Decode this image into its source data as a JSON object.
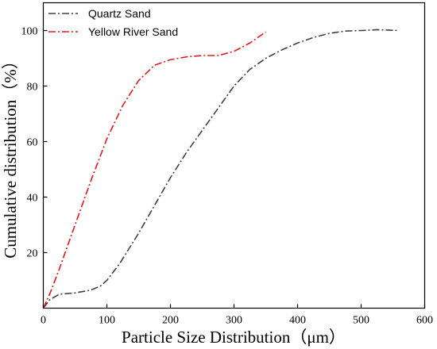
{
  "chart_data": {
    "type": "line",
    "xlabel": "Particle Size Distribution（μm）",
    "ylabel": "Cumulative distribution（%）",
    "xlim": [
      0,
      600
    ],
    "ylim": [
      0,
      110
    ],
    "xticks": [
      0,
      100,
      200,
      300,
      400,
      500,
      600
    ],
    "yticks": [
      20,
      40,
      60,
      80,
      100
    ],
    "grid": false,
    "legend_position": "top-left",
    "series": [
      {
        "name": "Quartz Sand",
        "color": "#404040",
        "line_style": "dash-dot",
        "points": [
          [
            0,
            0
          ],
          [
            10,
            3
          ],
          [
            25,
            5
          ],
          [
            50,
            5.5
          ],
          [
            75,
            6.5
          ],
          [
            90,
            8
          ],
          [
            100,
            10
          ],
          [
            120,
            16
          ],
          [
            150,
            27
          ],
          [
            175,
            37
          ],
          [
            200,
            47
          ],
          [
            225,
            56
          ],
          [
            250,
            64
          ],
          [
            275,
            72
          ],
          [
            300,
            80
          ],
          [
            325,
            86
          ],
          [
            350,
            90
          ],
          [
            375,
            93
          ],
          [
            400,
            95.5
          ],
          [
            425,
            97.5
          ],
          [
            450,
            99
          ],
          [
            475,
            99.8
          ],
          [
            500,
            100
          ],
          [
            525,
            100.3
          ],
          [
            560,
            100
          ]
        ]
      },
      {
        "name": "Yellow River Sand",
        "color": "#e8161b",
        "line_style": "dash-dot",
        "points": [
          [
            0,
            0
          ],
          [
            10,
            5
          ],
          [
            25,
            14
          ],
          [
            50,
            30
          ],
          [
            75,
            46
          ],
          [
            100,
            61
          ],
          [
            125,
            73
          ],
          [
            150,
            82
          ],
          [
            175,
            87.5
          ],
          [
            200,
            89.5
          ],
          [
            225,
            90.5
          ],
          [
            250,
            91
          ],
          [
            275,
            91
          ],
          [
            300,
            92.5
          ],
          [
            325,
            95.5
          ],
          [
            350,
            99.5
          ]
        ]
      }
    ]
  }
}
